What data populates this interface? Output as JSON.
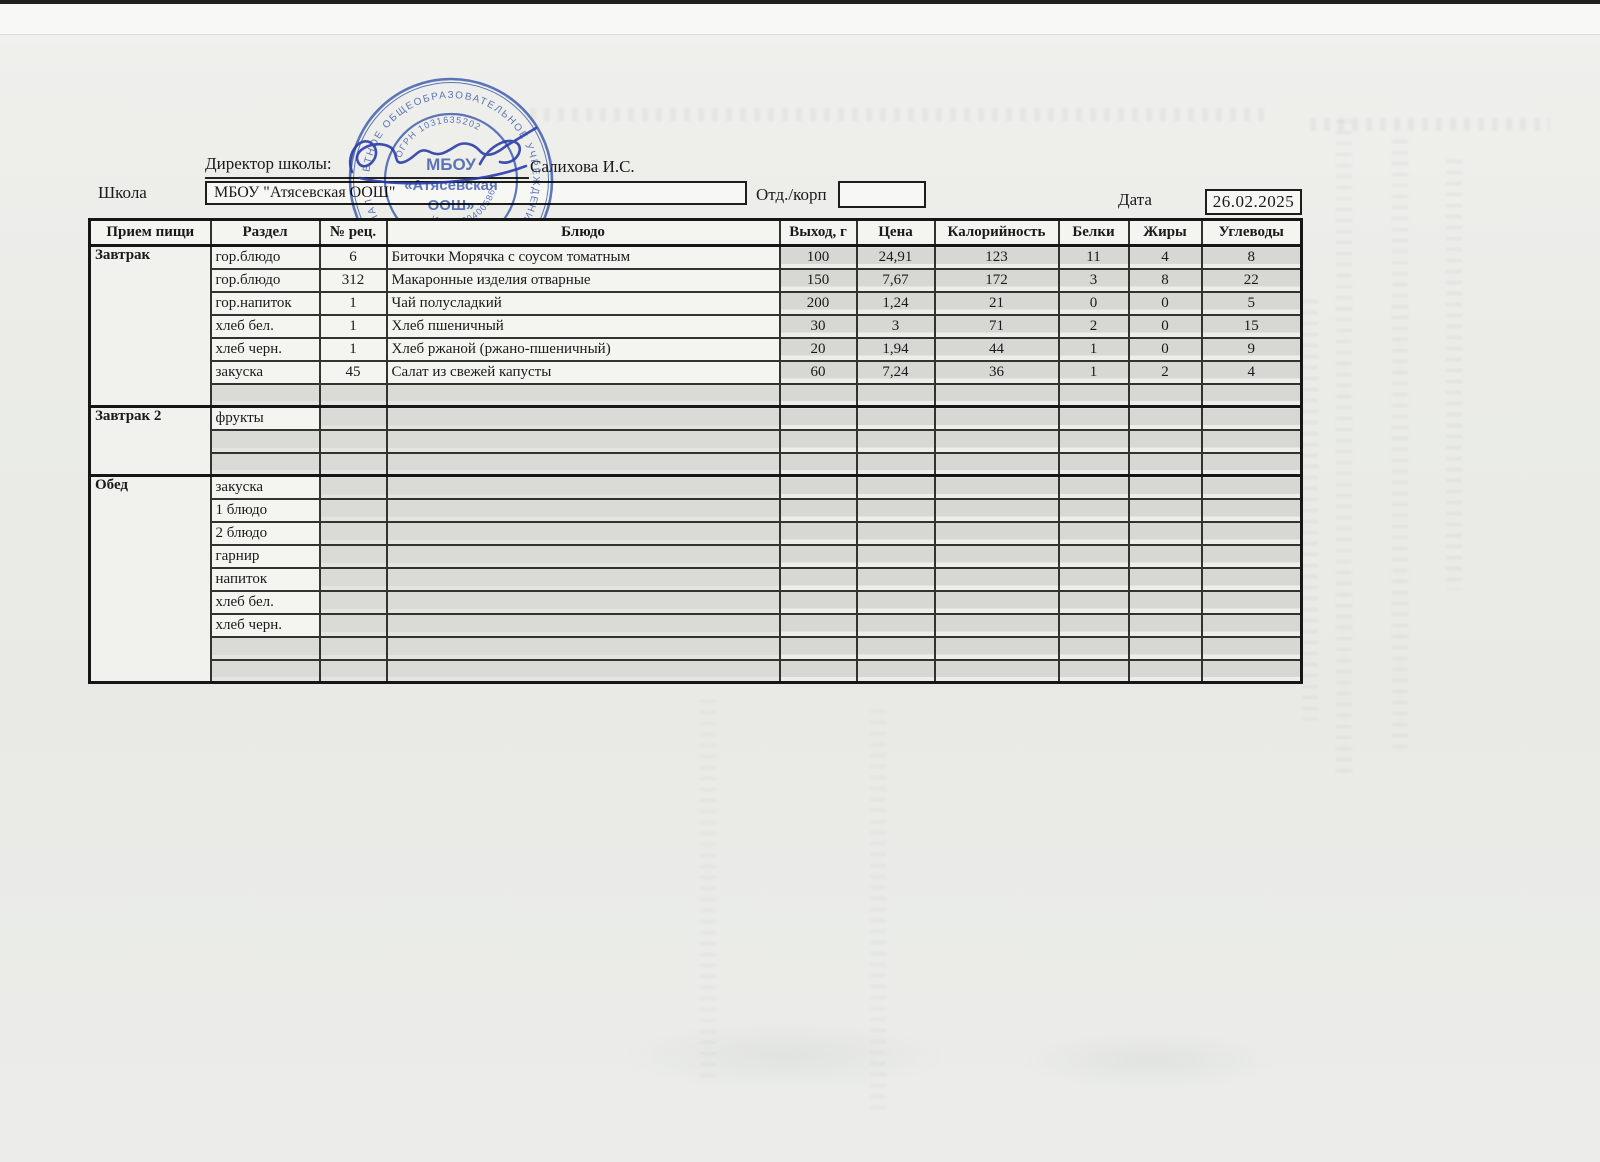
{
  "header": {
    "director_label": "Директор школы:",
    "director_name": "Салихова И.С.",
    "school_label": "Школа",
    "school_value": "МБОУ \"Атясевская ООШ\"",
    "dept_label": "Отд./корп",
    "dept_value": "",
    "date_label": "Дата",
    "date_value": "26.02.2025"
  },
  "stamp": {
    "ring_text": "ЕТНОЕ ОБЩЕОБРАЗОВАТЕЛЬНОЕ УЧРЕЖДЕНИЕ АКТАНЫШСКОГО МУНИЦИПАЛ",
    "ring_text_bottom": "НАЯ ШКОЛА»",
    "ogrn_text": "ОГРН 1031635202",
    "inn_text": "ИНН 1604005866",
    "center_line1": "МБОУ",
    "center_line2": "«Атясевская",
    "center_line3": "ООШ»",
    "ink_color": "#3e5fbc"
  },
  "table": {
    "headers": [
      "Прием пищи",
      "Раздел",
      "№ рец.",
      "Блюдо",
      "Выход, г",
      "Цена",
      "Калорийность",
      "Белки",
      "Жиры",
      "Углеводы"
    ],
    "sections": [
      {
        "name": "Завтрак",
        "rows": [
          {
            "r": "гор.блюдо",
            "n": "6",
            "d": "Биточки Морячка с соусом томатным",
            "v": "100",
            "p": "24,91",
            "k": "123",
            "b": "11",
            "z": "4",
            "u": "8"
          },
          {
            "r": "гор.блюдо",
            "n": "312",
            "d": "Макаронные изделия отварные",
            "v": "150",
            "p": "7,67",
            "k": "172",
            "b": "3",
            "z": "8",
            "u": "22"
          },
          {
            "r": "гор.напиток",
            "n": "1",
            "d": "Чай полусладкий",
            "v": "200",
            "p": "1,24",
            "k": "21",
            "b": "0",
            "z": "0",
            "u": "5"
          },
          {
            "r": "хлеб бел.",
            "n": "1",
            "d": "Хлеб пшеничный",
            "v": "30",
            "p": "3",
            "k": "71",
            "b": "2",
            "z": "0",
            "u": "15"
          },
          {
            "r": "хлеб черн.",
            "n": "1",
            "d": "Хлеб ржаной (ржано-пшеничный)",
            "v": "20",
            "p": "1,94",
            "k": "44",
            "b": "1",
            "z": "0",
            "u": "9"
          },
          {
            "r": "закуска",
            "n": "45",
            "d": "Салат из свежей капусты",
            "v": "60",
            "p": "7,24",
            "k": "36",
            "b": "1",
            "z": "2",
            "u": "4"
          },
          {}
        ]
      },
      {
        "name": "Завтрак 2",
        "rows": [
          {
            "r": "фрукты"
          },
          {},
          {}
        ]
      },
      {
        "name": "Обед",
        "rows": [
          {
            "r": "закуска"
          },
          {
            "r": "1 блюдо"
          },
          {
            "r": "2 блюдо"
          },
          {
            "r": "гарнир"
          },
          {
            "r": "напиток"
          },
          {
            "r": "хлеб бел."
          },
          {
            "r": "хлеб черн."
          },
          {},
          {}
        ]
      }
    ]
  }
}
